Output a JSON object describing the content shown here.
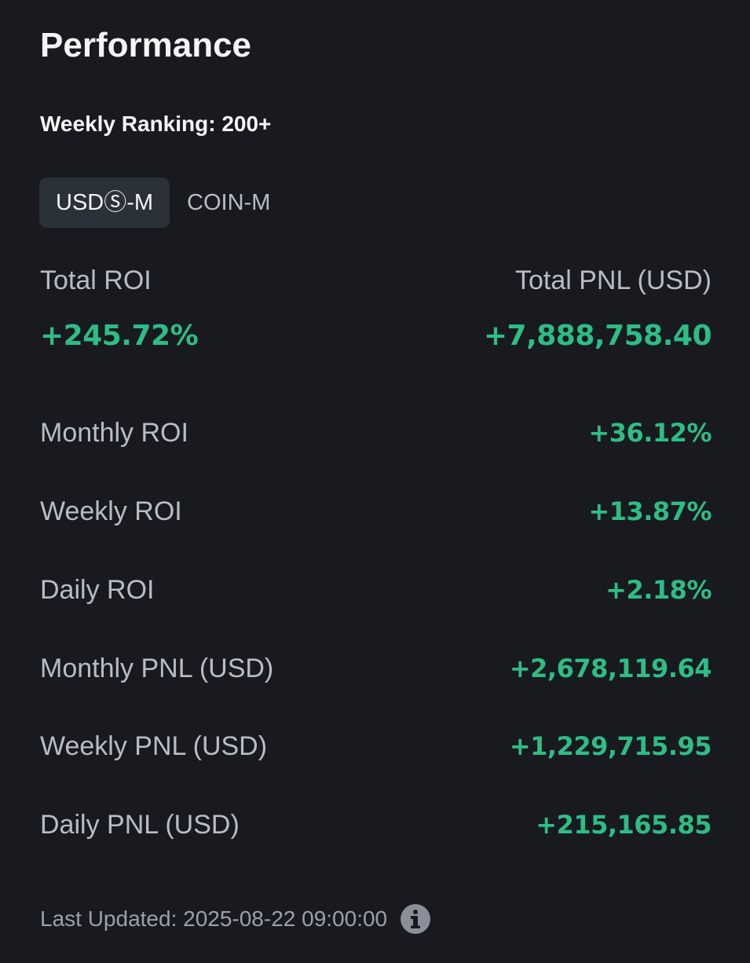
{
  "header": {
    "title": "Performance",
    "ranking": "Weekly Ranking: 200+"
  },
  "tabs": [
    {
      "label": "USDⓈ-M",
      "active": true
    },
    {
      "label": "COIN-M",
      "active": false
    }
  ],
  "summary": {
    "roi_label": "Total ROI",
    "roi_value": "+245.72%",
    "pnl_label": "Total PNL (USD)",
    "pnl_value": "+7,888,758.40"
  },
  "stats": [
    {
      "label": "Monthly ROI",
      "value": "+36.12%"
    },
    {
      "label": "Weekly ROI",
      "value": "+13.87%"
    },
    {
      "label": "Daily ROI",
      "value": "+2.18%"
    },
    {
      "label": "Monthly PNL (USD)",
      "value": "+2,678,119.64"
    },
    {
      "label": "Weekly PNL (USD)",
      "value": "+1,229,715.95"
    },
    {
      "label": "Daily PNL (USD)",
      "value": "+215,165.85"
    }
  ],
  "footer": {
    "last_updated": "Last Updated: 2025-08-22 09:00:00",
    "icon": "info-icon"
  },
  "colors": {
    "background": "#181a20",
    "positive": "#2ebd85",
    "label": "#b7bdc6",
    "active_tab_bg": "#2b3139"
  }
}
